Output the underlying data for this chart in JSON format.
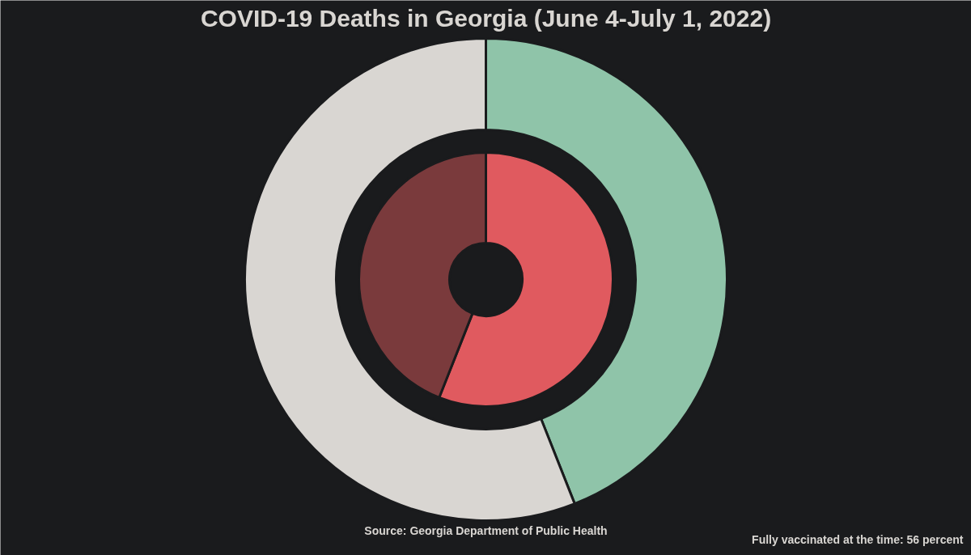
{
  "chart_data": {
    "type": "donut",
    "title": "COVID-19 Deaths in Georgia (June 4-July 1, 2022)",
    "categories": [
      null,
      null
    ],
    "series": [
      {
        "colors": [
          "#8fc4a9",
          "#d9d6d2"
        ],
        "values": [
          44,
          56
        ]
      },
      {
        "colors": [
          "#e05a5f",
          "#7a3a3c"
        ],
        "values": [
          56,
          44
        ]
      }
    ],
    "annotations": [
      "Source: Georgia Department of Public Health",
      "Fully vaccinated at the time: 56 percent"
    ]
  }
}
